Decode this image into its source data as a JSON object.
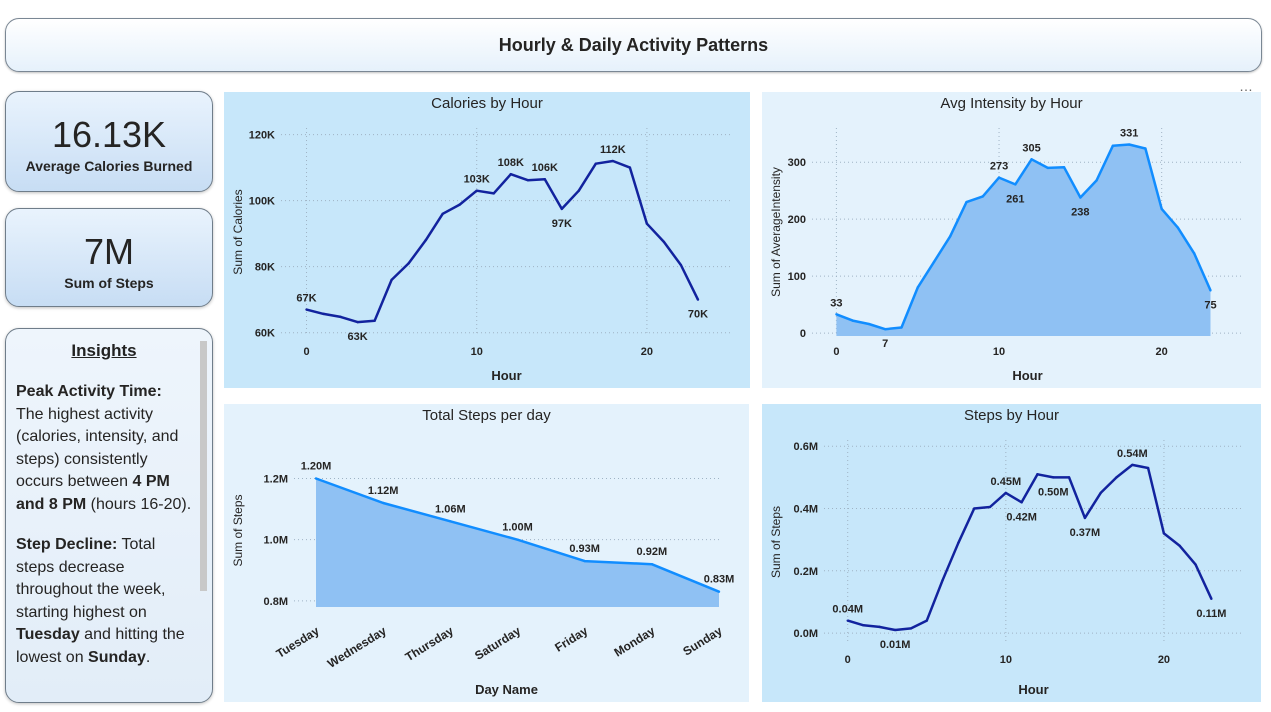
{
  "header": {
    "title": "Hourly & Daily Activity Patterns"
  },
  "more_label": "…",
  "kpi1": {
    "value": "16.13K",
    "label": "Average Calories Burned"
  },
  "kpi2": {
    "value": "7M",
    "label": "Sum of Steps"
  },
  "insights": {
    "title": "Insights",
    "p1_bold": "Peak Activity Time:",
    "p1_text": " The highest activity (calories, intensity, and steps) consistently occurs between ",
    "p1_bold2": "4 PM and 8 PM",
    "p1_text2": " (hours 16-20).",
    "p2_bold": "Step Decline:",
    "p2_text": " Total steps decrease throughout the week, starting highest on ",
    "p2_bold2": "Tuesday",
    "p2_text2": " and hitting the lowest on ",
    "p2_bold3": "Sunday",
    "p2_text3": "."
  },
  "chart_data": [
    {
      "id": "calories",
      "type": "line",
      "title": "Calories by Hour",
      "xlabel": "Hour",
      "ylabel": "Sum of Calories",
      "bg": "#c7e7fa",
      "color": "#12239e",
      "fill": false,
      "xlim": [
        -1.5,
        25
      ],
      "ylim": [
        59000,
        122000
      ],
      "xticks": [
        0,
        10,
        20
      ],
      "yticks": [
        60000,
        80000,
        100000,
        120000
      ],
      "yticklabels": [
        "60K",
        "80K",
        "100K",
        "120K"
      ],
      "x": [
        0,
        1,
        2,
        3,
        4,
        5,
        6,
        7,
        8,
        9,
        10,
        11,
        12,
        13,
        14,
        15,
        16,
        17,
        18,
        19,
        20,
        21,
        22,
        23
      ],
      "y": [
        67000,
        65700,
        64800,
        63200,
        63600,
        76000,
        81000,
        88000,
        96000,
        98800,
        103000,
        102200,
        108000,
        106200,
        106500,
        97500,
        103000,
        111200,
        112000,
        110000,
        93000,
        87500,
        80500,
        70000
      ],
      "labels": [
        [
          0,
          "67K"
        ],
        [
          3,
          "63K"
        ],
        [
          10,
          "103K"
        ],
        [
          12,
          "108K"
        ],
        [
          14,
          "106K"
        ],
        [
          15,
          "97K"
        ],
        [
          18,
          "112K"
        ],
        [
          23,
          "70K"
        ]
      ]
    },
    {
      "id": "intensity",
      "type": "area",
      "title": "Avg Intensity by Hour",
      "xlabel": "Hour",
      "ylabel": "Sum of AverageIntensity",
      "bg": "#e4f2fc",
      "color": "#118dff",
      "fill": true,
      "fillColor": "#8fc1f3",
      "xlim": [
        -1.5,
        25
      ],
      "ylim": [
        -5,
        360
      ],
      "xticks": [
        0,
        10,
        20
      ],
      "yticks": [
        0,
        100,
        200,
        300
      ],
      "yticklabels": [
        "0",
        "100",
        "200",
        "300"
      ],
      "x": [
        0,
        1,
        2,
        3,
        4,
        5,
        6,
        7,
        8,
        9,
        10,
        11,
        12,
        13,
        14,
        15,
        16,
        17,
        18,
        19,
        20,
        21,
        22,
        23
      ],
      "y": [
        33,
        22,
        16,
        7,
        10,
        80,
        125,
        170,
        230,
        240,
        273,
        261,
        305,
        290,
        291,
        238,
        268,
        329,
        331,
        324,
        218,
        185,
        140,
        75
      ],
      "labels": [
        [
          0,
          "33"
        ],
        [
          3,
          "7"
        ],
        [
          10,
          "273"
        ],
        [
          11,
          "261"
        ],
        [
          12,
          "305"
        ],
        [
          15,
          "238"
        ],
        [
          18,
          "331"
        ],
        [
          23,
          "75"
        ]
      ]
    },
    {
      "id": "daily",
      "type": "area",
      "title": "Total Steps per day",
      "xlabel": "Day Name",
      "ylabel": "Sum of Steps",
      "bg": "#e4f2fc",
      "color": "#118dff",
      "fill": true,
      "fillColor": "#8fc1f3",
      "categories": [
        "Tuesday",
        "Wednesday",
        "Thursday",
        "Saturday",
        "Friday",
        "Monday",
        "Sunday"
      ],
      "ylim": [
        0.78,
        1.28
      ],
      "yticks": [
        0.8,
        1.0,
        1.2
      ],
      "yticklabels": [
        "0.8M",
        "1.0M",
        "1.2M"
      ],
      "values": [
        1.2,
        1.12,
        1.06,
        1.0,
        0.93,
        0.92,
        0.83
      ],
      "valuelabels": [
        "1.20M",
        "1.12M",
        "1.06M",
        "1.00M",
        "0.93M",
        "0.92M",
        "0.83M"
      ]
    },
    {
      "id": "stepshour",
      "type": "line",
      "title": "Steps by Hour",
      "xlabel": "Hour",
      "ylabel": "Sum of Steps",
      "bg": "#c7e7fa",
      "color": "#12239e",
      "fill": false,
      "xlim": [
        -1.5,
        25
      ],
      "ylim": [
        -0.035,
        0.62
      ],
      "xticks": [
        0,
        10,
        20
      ],
      "yticks": [
        0,
        0.2,
        0.4,
        0.6
      ],
      "yticklabels": [
        "0.0M",
        "0.2M",
        "0.4M",
        "0.6M"
      ],
      "x": [
        0,
        1,
        2,
        3,
        4,
        5,
        6,
        7,
        8,
        9,
        10,
        11,
        12,
        13,
        14,
        15,
        16,
        17,
        18,
        19,
        20,
        21,
        22,
        23
      ],
      "y": [
        0.04,
        0.025,
        0.02,
        0.01,
        0.015,
        0.04,
        0.17,
        0.29,
        0.4,
        0.405,
        0.45,
        0.42,
        0.51,
        0.5,
        0.5,
        0.37,
        0.45,
        0.5,
        0.54,
        0.53,
        0.32,
        0.28,
        0.22,
        0.11
      ],
      "labels": [
        [
          0,
          "0.04M"
        ],
        [
          3,
          "0.01M"
        ],
        [
          10,
          "0.45M"
        ],
        [
          11,
          "0.42M"
        ],
        [
          13,
          "0.50M"
        ],
        [
          15,
          "0.37M"
        ],
        [
          18,
          "0.54M"
        ],
        [
          23,
          "0.11M"
        ]
      ]
    }
  ]
}
